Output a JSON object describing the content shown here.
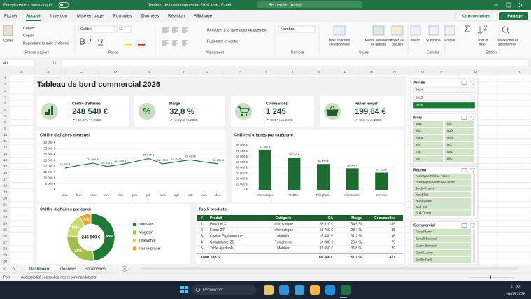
{
  "title_bar": {
    "autosave": "Enregistrement automatique",
    "file": "Tableau de bord commercial 2026.xlsx  -  Excel",
    "search": "Rechercher (Alt+Q)"
  },
  "tabs": [
    "Fichier",
    "Accueil",
    "Insertion",
    "Mise en page",
    "Formules",
    "Données",
    "Révision",
    "Affichage"
  ],
  "active_tab": 1,
  "actions": {
    "comments": "Commentaires",
    "share": "Partager"
  },
  "ribbon": {
    "clipboard": {
      "paste": "Coller",
      "cut": "Couper",
      "copy": "Copier",
      "format_painter": "Reproduire la mise en forme",
      "label": "Presse-papiers"
    },
    "font": {
      "name": "Calibri",
      "size": "11",
      "label": "Police"
    },
    "alignment": {
      "wrap": "Renvoyer à la ligne automatiquement",
      "merge": "Fusionner et centrer",
      "label": "Alignement"
    },
    "number": {
      "format": "Nombre",
      "label": "Nombre"
    },
    "styles": {
      "conditional": [
        "Mise en forme",
        "conditionnelle"
      ],
      "table": [
        "Mettre sous forme",
        "de tableau"
      ],
      "cell_styles": [
        "Styles de",
        "cellules"
      ],
      "label": "Styles"
    },
    "cells": {
      "insert": "Insérer",
      "delete": "Supprimer",
      "format": "Format",
      "label": "Cellules"
    },
    "editing": {
      "sort": [
        "Trier et",
        "filtrer"
      ],
      "find": [
        "Rechercher et",
        "sélectionner"
      ],
      "label": "Édition"
    }
  },
  "formula_bar": {
    "name_box": "A1",
    "fx": "fx"
  },
  "columns": [
    "A",
    "B",
    "C",
    "D",
    "E",
    "F",
    "G",
    "H",
    "I",
    "J",
    "K",
    "L",
    "M",
    "N",
    "O",
    "P",
    "Q",
    "R"
  ],
  "rows": [
    1,
    2,
    3,
    4,
    5,
    6,
    7,
    8,
    9,
    10,
    11,
    12,
    13,
    14,
    15,
    16,
    17,
    18,
    19,
    20,
    21,
    22,
    23,
    24,
    25,
    26,
    27,
    28,
    29,
    30
  ],
  "dashboard": {
    "title": "Tableau de bord commercial 2026",
    "kpis": [
      {
        "label": "Chiffre d'affaires",
        "value": "248 540 €",
        "change": "↗ +12,6 % vs 2025"
      },
      {
        "label": "Marge",
        "value": "32,8 %",
        "change": "↗ +2,4 pts vs 2025",
        "icon": "%"
      },
      {
        "label": "Commandes",
        "value": "1 245",
        "change": "↗ +8,7 % vs 2025"
      },
      {
        "label": "Panier moyen",
        "value": "199,64 €",
        "change": "↗ +3,6 % vs 2025"
      }
    ],
    "monthly_chart": {
      "type": "line",
      "title": "Chiffre d'affaires mensuel",
      "color": "#1e6b30",
      "categories": [
        "janv.",
        "févr.",
        "mars",
        "avr.",
        "mai",
        "juin",
        "juil.",
        "août",
        "sept.",
        "oct.",
        "nov.",
        "déc."
      ],
      "values": [
        18450,
        20800,
        22680,
        19870,
        21540,
        23900,
        26540,
        22130,
        23760,
        25490,
        23600,
        22135
      ],
      "value_labels": [
        "18 450 €",
        null,
        "22 680 €",
        "19 870 €",
        "21 540 €",
        null,
        "26 540 €",
        "22 130 €",
        "23 760 €",
        "25 490 €",
        null,
        "22 135 €"
      ],
      "ylim": [
        0,
        40000
      ],
      "yticks": [
        {
          "value": 0,
          "label": "- €"
        },
        {
          "value": 5000,
          "label": "5 000 €"
        },
        {
          "value": 10000,
          "label": "10 000 €"
        },
        {
          "value": 15000,
          "label": "15 000 €"
        },
        {
          "value": 20000,
          "label": "20 000 €"
        },
        {
          "value": 25000,
          "label": "25 000 €"
        },
        {
          "value": 30000,
          "label": "30 000 €"
        },
        {
          "value": 35000,
          "label": "35 000 €"
        },
        {
          "value": 40000,
          "label": "40 000 €"
        }
      ]
    },
    "category_chart": {
      "type": "bar",
      "title": "Chiffre d'affaires par catégorie",
      "color": "#1e6b30",
      "categories": [
        "Informatique",
        "Mobilier",
        "Téléphonie",
        "Accessoires",
        "Services"
      ],
      "values": [
        72540,
        58230,
        46670,
        38900,
        31130
      ],
      "value_labels": [
        "72 540 €",
        "58 230 €",
        "46 670 €",
        "38 900 €",
        "31 130 €"
      ],
      "ylim": [
        0,
        80000
      ],
      "yticks": [
        {
          "value": 0,
          "label": "- €"
        },
        {
          "value": 10000,
          "label": "10 000 €"
        },
        {
          "value": 20000,
          "label": "20 000 €"
        },
        {
          "value": 30000,
          "label": "30 000 €"
        },
        {
          "value": 40000,
          "label": "40 000 €"
        },
        {
          "value": 50000,
          "label": "50 000 €"
        },
        {
          "value": 60000,
          "label": "60 000 €"
        },
        {
          "value": 70000,
          "label": "70 000 €"
        },
        {
          "value": 80000,
          "label": "80 000 €"
        }
      ]
    },
    "channel_chart": {
      "type": "donut",
      "title": "Chiffre d'affaires par canal",
      "center_label": "248 540 €",
      "categories": [
        "Site web",
        "Magasin",
        "Télévente",
        "Marketplace"
      ],
      "values": [
        48,
        28,
        16,
        8
      ],
      "value_labels": [
        "48%",
        "28%",
        "16%",
        "8%"
      ],
      "colors": [
        "#1e7b34",
        "#a3be4c",
        "#c9d970",
        "#f0a232"
      ]
    },
    "top_products": {
      "title": "Top 5 produits",
      "headers": [
        "#",
        "Produit",
        "Catégorie",
        "CA",
        "Marge",
        "Commandes"
      ],
      "rows": [
        [
          1,
          "Portable X1",
          "Informatique",
          "28 520 €",
          "34,5 %",
          135
        ],
        [
          2,
          "Écran 24\"",
          "Informatique",
          "18 760 €",
          "28,7 %",
          85
        ],
        [
          3,
          "Chaise Ergonomique",
          "Mobilier",
          "15 430 €",
          "31,2 %",
          96
        ],
        [
          4,
          "Smartphone Z5",
          "Téléphonie",
          "14 980 €",
          "29,4 %",
          75
        ],
        [
          5,
          "Table Ajustable",
          "Mobilier",
          "11 650 €",
          "36,8 %",
          20
        ]
      ],
      "total": {
        "label": "Total Top 5",
        "ca": "89 340 €",
        "marge": "31,7 %",
        "commandes": 411
      }
    }
  },
  "slicers": [
    {
      "title": "Année",
      "items": [
        "2024",
        "2025",
        "2026"
      ],
      "selected_index": 2
    },
    {
      "title": "Mois",
      "items": [
        "janv.",
        "juil.",
        "févr.",
        "août",
        "mars",
        "sept.",
        "avr.",
        "oct.",
        "mai",
        "nov.",
        "juin",
        "déc."
      ]
    },
    {
      "title": "Région",
      "items": [
        "Auvergne-Rhône-Alpes",
        "Bourgogne-Franche-Comté",
        "Île-de-France",
        "Nord-Est",
        "Nord-Ouest",
        "Sud-Est",
        "Sud-Ouest"
      ]
    },
    {
      "title": "Commercial",
      "items": [
        "Alice Martin",
        "Benoît Durand",
        "Claire Bernard",
        "David Leroy",
        "Emilie Petit"
      ]
    }
  ],
  "sheet_tabs": [
    "Dashboard",
    "Données",
    "Paramètres"
  ],
  "active_sheet": 0,
  "status_bar": {
    "mode": "Prêt",
    "accessibility": "Accessibilité : consultez nos recommandations"
  },
  "taskbar": {
    "search": "Rechercher",
    "time": "11:32",
    "date": "26/05/2026"
  }
}
